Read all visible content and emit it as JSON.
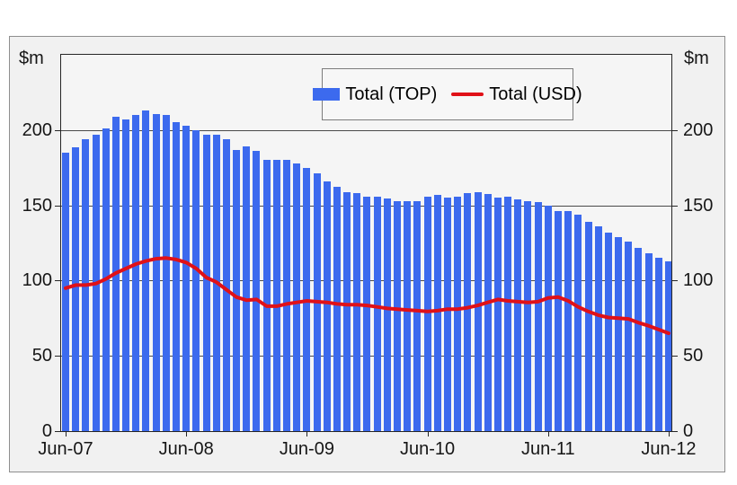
{
  "chart": {
    "left_axis_unit": "$m",
    "right_axis_unit": "$m",
    "y_tick_labels": [
      "0",
      "50",
      "100",
      "150",
      "200"
    ],
    "x_labels": [
      "Jun-07",
      "Jun-08",
      "Jun-09",
      "Jun-10",
      "Jun-11",
      "Jun-12"
    ],
    "legend": [
      {
        "label": "Total (TOP)",
        "swatch": "bar-swatch",
        "color": "#3c6aee"
      },
      {
        "label": "Total (USD)",
        "swatch": "line-swatch",
        "color": "#e01118"
      }
    ],
    "colors": {
      "bar": "#3c6aee",
      "line": "#e01118",
      "plot_background": "#f5f5f5",
      "chart_background": "#f1f1f1",
      "axis": "#262626"
    }
  },
  "chart_data": {
    "type": "bar",
    "title": "",
    "xlabel": "",
    "ylabel": "$m",
    "ylim": [
      0,
      250
    ],
    "y_ticks": [
      0,
      50,
      100,
      150,
      200
    ],
    "grid": true,
    "legend_position": "top-center",
    "x_unit": "month",
    "x_tick_labels": [
      "Jun-07",
      "Jun-08",
      "Jun-09",
      "Jun-10",
      "Jun-11",
      "Jun-12"
    ],
    "x_tick_indices": [
      0,
      12,
      24,
      36,
      48,
      60
    ],
    "series": [
      {
        "name": "Total (TOP)",
        "type": "bar",
        "color": "#3c6aee",
        "values": [
          185,
          188.5,
          194,
          197,
          201,
          209,
          207,
          210,
          213,
          210.5,
          210,
          205,
          203,
          200,
          197,
          197,
          194,
          187,
          189,
          186,
          180,
          180,
          180,
          178,
          175,
          171,
          166,
          162,
          159,
          158,
          156,
          156,
          154.5,
          153,
          152.5,
          153,
          156,
          157,
          155,
          156,
          158,
          159,
          157.5,
          155,
          155.5,
          154,
          153,
          152,
          150,
          146,
          146,
          144,
          139,
          136,
          132,
          129,
          126,
          122,
          118,
          115,
          113
        ]
      },
      {
        "name": "Total (USD)",
        "type": "line",
        "color": "#e01118",
        "values": [
          95,
          97,
          97,
          98,
          101,
          105,
          108,
          111,
          113,
          114.5,
          115,
          114,
          112,
          108,
          102,
          99,
          94,
          89,
          87,
          87.5,
          83,
          83,
          84.5,
          85.5,
          86.5,
          86,
          85.5,
          84.5,
          84,
          84,
          83.5,
          82.5,
          81.5,
          81,
          80.5,
          80,
          79.5,
          80,
          81,
          81,
          82,
          83.5,
          85.5,
          87.5,
          86.5,
          86,
          85.5,
          86,
          88.5,
          89,
          86.5,
          82.5,
          79.5,
          77,
          75.5,
          75,
          74.5,
          72,
          70,
          67.5,
          65
        ]
      }
    ]
  }
}
